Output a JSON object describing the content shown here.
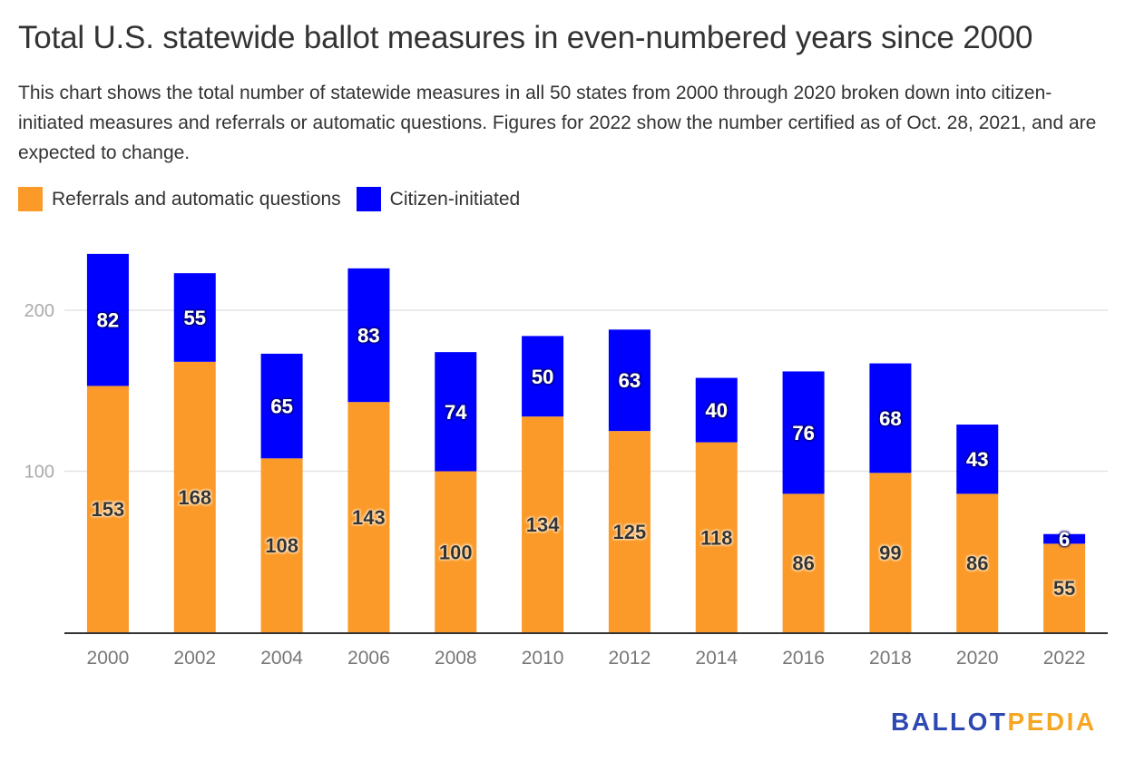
{
  "header": {
    "title": "Total U.S. statewide ballot measures in even-numbered years since 2000",
    "subtitle": "This chart shows the total number of statewide measures in all 50 states from 2000 through 2020 broken down into citizen-initiated measures and referrals or automatic questions. Figures for 2022 show the number certified as of Oct. 28, 2021, and are expected to change."
  },
  "legend": [
    {
      "label": "Referrals and automatic questions",
      "color": "#fb9a29"
    },
    {
      "label": "Citizen-initiated",
      "color": "#0000ff"
    }
  ],
  "logo": {
    "part1": "BALLOT",
    "part2": "PEDIA"
  },
  "chart_data": {
    "type": "bar",
    "stacked": true,
    "title": "Total U.S. statewide ballot measures in even-numbered years since 2000",
    "xlabel": "",
    "ylabel": "",
    "categories": [
      "2000",
      "2002",
      "2004",
      "2006",
      "2008",
      "2010",
      "2012",
      "2014",
      "2016",
      "2018",
      "2020",
      "2022"
    ],
    "series": [
      {
        "name": "Referrals and automatic questions",
        "color": "#fb9a29",
        "label_color": "#333333",
        "values": [
          153,
          168,
          108,
          143,
          100,
          134,
          125,
          118,
          86,
          99,
          86,
          55
        ]
      },
      {
        "name": "Citizen-initiated",
        "color": "#0000ff",
        "label_color": "#ffffff",
        "values": [
          82,
          55,
          65,
          83,
          74,
          50,
          63,
          40,
          76,
          68,
          43,
          6
        ]
      }
    ],
    "ylim": [
      0,
      235
    ],
    "yticks": [
      100,
      200
    ],
    "grid": true,
    "legend_position": "top-left",
    "data_labels": true
  }
}
